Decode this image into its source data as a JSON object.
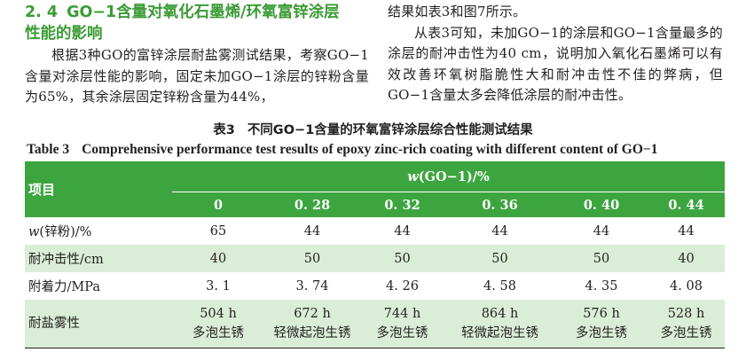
{
  "section": {
    "number": "2. 4",
    "title_line1": "GO−1含量对氧化石墨烯/环氧富锌涂层",
    "title_line2": "性能的影响"
  },
  "paragraph_left": "根据3种GO的富锌涂层耐盐雾测试结果，考察GO−1含量对涂层性能的影响，固定未加GO−1涂层的锌粉含量为65%，其余涂层固定锌粉含量为44%，",
  "paragraph_right_cont": "结果如表3和图7所示。",
  "paragraph_right": "从表3可知，未加GO−1的涂层和GO−1含量最多的涂层的耐冲击性为40 cm，说明加入氧化石墨烯可以有效改善环氧树脂脆性大和耐冲击性不佳的弊病，但GO−1含量太多会降低涂层的耐冲击性。",
  "table": {
    "caption_cn_no": "表3",
    "caption_cn": "不同GO−1含量的环氧富锌涂层综合性能测试结果",
    "caption_en_no": "Table 3",
    "caption_en": "Comprehensive performance test results of epoxy zinc-rich coating with different content of GO−1",
    "item_header": "项目",
    "group_header_var": "w",
    "group_header_rest": "(GO−1)/%",
    "columns": [
      "0",
      "0. 28",
      "0. 32",
      "0. 36",
      "0. 40",
      "0. 44"
    ],
    "rows": [
      {
        "label_var": "w",
        "label_rest": "(锌粉)/%",
        "values": [
          "65",
          "44",
          "44",
          "44",
          "44",
          "44"
        ]
      },
      {
        "label_var": "",
        "label_rest": "耐冲击性/cm",
        "values": [
          "40",
          "50",
          "50",
          "50",
          "50",
          "40"
        ]
      },
      {
        "label_var": "",
        "label_rest": "附着力/MPa",
        "values": [
          "3. 1",
          "3. 74",
          "4. 26",
          "4. 58",
          "4. 35",
          "4. 08"
        ]
      },
      {
        "label_var": "",
        "label_rest": "耐盐雾性",
        "values_line1": [
          "504 h",
          "672 h",
          "744 h",
          "864 h",
          "576 h",
          "528 h"
        ],
        "values_line2": [
          "多泡生锈",
          "轻微起泡生锈",
          "多泡生锈",
          "轻微起泡生锈",
          "多泡生锈",
          "多泡生锈"
        ]
      }
    ]
  },
  "colors": {
    "accent_green": "#3a9b35",
    "header_fill": "#3da540",
    "band_fill": "#daeed7",
    "text": "#231f20"
  }
}
